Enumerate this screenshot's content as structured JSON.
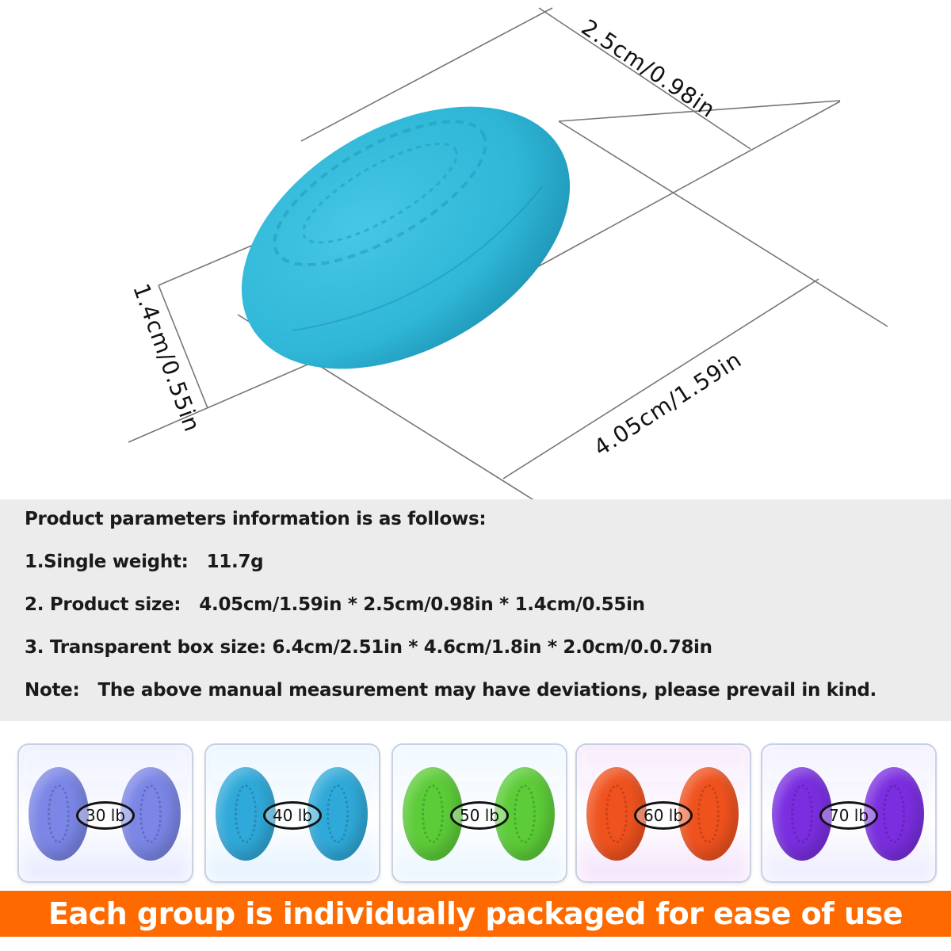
{
  "dimensions": {
    "width_label": "2.5cm/0.98in",
    "height_label": "1.4cm/0.55in",
    "length_label": "4.05cm/1.59in"
  },
  "product": {
    "color": "#2fb6d6"
  },
  "params": {
    "heading": "Product parameters information is as follows:",
    "weight": "1.Single weight:   11.7g",
    "size": "2. Product size:   4.05cm/1.59in * 2.5cm/0.98in * 1.4cm/0.55in",
    "box_size": "3. Transparent box size: 6.4cm/2.51in * 4.6cm/1.8in * 2.0cm/0.0.78in",
    "note": "Note:   The above manual measurement may have deviations, please prevail in kind."
  },
  "packages": [
    {
      "weight": "30 lb",
      "color": "#7b86e6",
      "tint": "#e6eaff"
    },
    {
      "weight": "40 lb",
      "color": "#2fa9d9",
      "tint": "#e2f1ff"
    },
    {
      "weight": "50 lb",
      "color": "#5ccc38",
      "tint": "#e9f5ff"
    },
    {
      "weight": "60 lb",
      "color": "#f0521e",
      "tint": "#f4e2fb"
    },
    {
      "weight": "70 lb",
      "color": "#7a2ee0",
      "tint": "#ecebff"
    }
  ],
  "banner": {
    "text": "Each group is individually packaged for ease of use",
    "color": "#ff6a00"
  }
}
